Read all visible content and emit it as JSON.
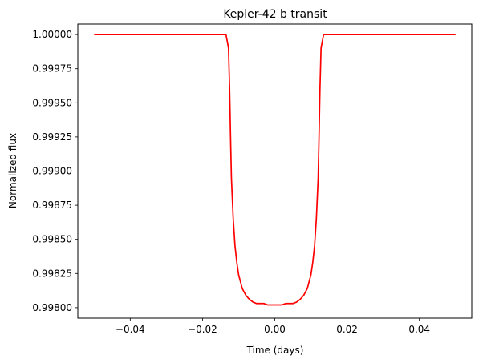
{
  "chart_data": {
    "type": "line",
    "title": "Kepler-42 b transit",
    "xlabel": "Time (days)",
    "ylabel": "Normalized flux",
    "xlim": [
      -0.0545,
      0.0545
    ],
    "ylim": [
      0.997923,
      1.000077
    ],
    "x_ticks": [
      -0.04,
      -0.02,
      0.0,
      0.02,
      0.04
    ],
    "x_tick_labels": [
      "−0.04",
      "−0.02",
      "0.00",
      "0.02",
      "0.04"
    ],
    "y_ticks": [
      0.998,
      0.99825,
      0.9985,
      0.99875,
      0.999,
      0.99925,
      0.9995,
      0.99975,
      1.0
    ],
    "y_tick_labels": [
      "0.99800",
      "0.99825",
      "0.99850",
      "0.99875",
      "0.99900",
      "0.99925",
      "0.99950",
      "0.99975",
      "1.00000"
    ],
    "grid": false,
    "line_color": "#ff0000",
    "series": [
      {
        "x": [
          -0.05,
          -0.0135,
          -0.0128,
          -0.0125,
          -0.0122,
          -0.012,
          -0.0115,
          -0.011,
          -0.0105,
          -0.01,
          -0.009,
          -0.008,
          -0.007,
          -0.006,
          -0.005,
          -0.004,
          -0.003,
          -0.002,
          -0.001,
          0.0,
          0.001,
          0.002,
          0.003,
          0.004,
          0.005,
          0.006,
          0.007,
          0.008,
          0.009,
          0.01,
          0.0105,
          0.011,
          0.0115,
          0.012,
          0.0122,
          0.0125,
          0.0128,
          0.0135,
          0.05
        ],
        "y": [
          1.0,
          1.0,
          0.9999,
          0.9996,
          0.9992,
          0.99895,
          0.99865,
          0.99845,
          0.99833,
          0.99824,
          0.99814,
          0.99809,
          0.99806,
          0.99804,
          0.99803,
          0.99803,
          0.99803,
          0.99802,
          0.99802,
          0.99802,
          0.99802,
          0.99802,
          0.99803,
          0.99803,
          0.99803,
          0.99804,
          0.99806,
          0.99809,
          0.99814,
          0.99824,
          0.99833,
          0.99845,
          0.99865,
          0.99895,
          0.9992,
          0.9996,
          0.9999,
          1.0,
          1.0
        ]
      }
    ]
  }
}
